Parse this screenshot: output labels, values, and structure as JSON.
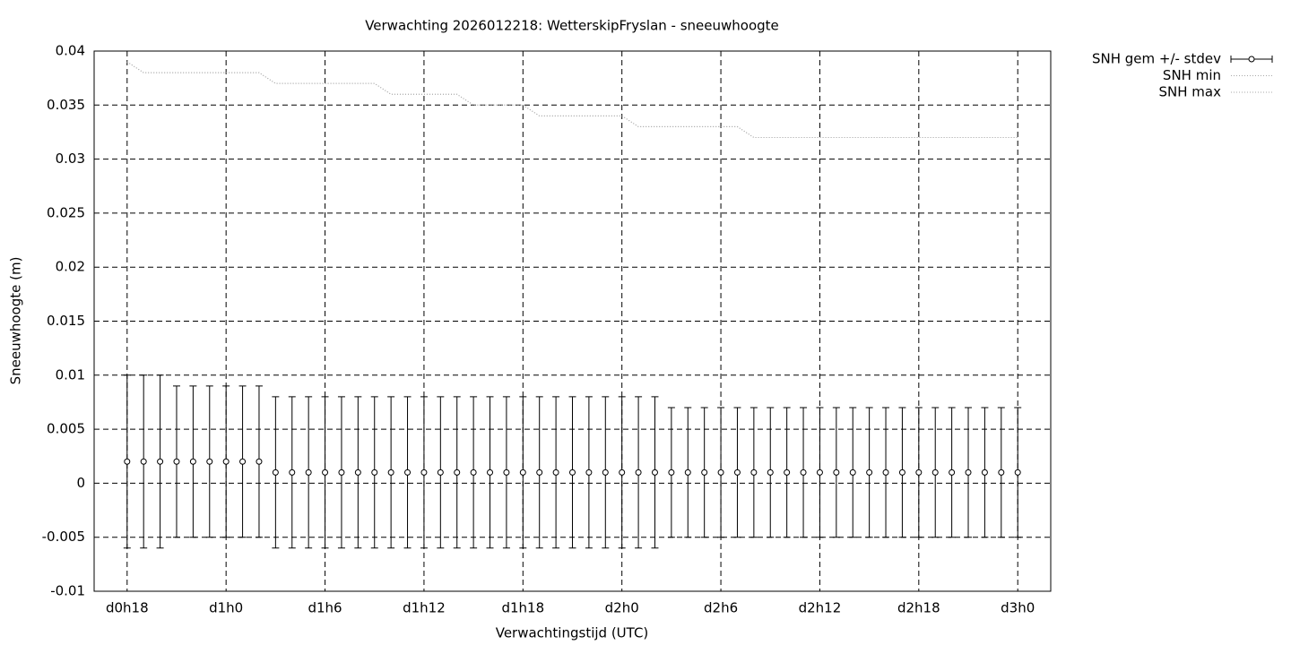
{
  "chart_data": {
    "type": "errorbar",
    "title": "Verwachting 2026012218: WetterskipFryslan - sneeuwhoogte",
    "xlabel": "Verwachtingstijd (UTC)",
    "ylabel": "Sneeuwhoogte (m)",
    "x": [
      18,
      19,
      20,
      21,
      22,
      23,
      24,
      25,
      26,
      27,
      28,
      29,
      30,
      31,
      32,
      33,
      34,
      35,
      36,
      37,
      38,
      39,
      40,
      41,
      42,
      43,
      44,
      45,
      46,
      47,
      48,
      49,
      50,
      51,
      52,
      53,
      54,
      55,
      56,
      57,
      58,
      59,
      60,
      61,
      62,
      63,
      64,
      65,
      66,
      67,
      68,
      69,
      70,
      71,
      72
    ],
    "xlim": [
      16,
      74
    ],
    "xticks": [
      {
        "value": 18,
        "label": "d0h18"
      },
      {
        "value": 24,
        "label": "d1h0"
      },
      {
        "value": 30,
        "label": "d1h6"
      },
      {
        "value": 36,
        "label": "d1h12"
      },
      {
        "value": 42,
        "label": "d1h18"
      },
      {
        "value": 48,
        "label": "d2h0"
      },
      {
        "value": 54,
        "label": "d2h6"
      },
      {
        "value": 60,
        "label": "d2h12"
      },
      {
        "value": 66,
        "label": "d2h18"
      },
      {
        "value": 72,
        "label": "d3h0"
      }
    ],
    "ylim": [
      -0.01,
      0.04
    ],
    "yticks": [
      -0.01,
      -0.005,
      0,
      0.005,
      0.01,
      0.015,
      0.02,
      0.025,
      0.03,
      0.035,
      0.04
    ],
    "grid": true,
    "legend": "right",
    "series": [
      {
        "name": "SNH gem +/- stdev",
        "color": "#000000",
        "style": "errorbar",
        "values": [
          0.002,
          0.002,
          0.002,
          0.002,
          0.002,
          0.002,
          0.002,
          0.002,
          0.002,
          0.001,
          0.001,
          0.001,
          0.001,
          0.001,
          0.001,
          0.001,
          0.001,
          0.001,
          0.001,
          0.001,
          0.001,
          0.001,
          0.001,
          0.001,
          0.001,
          0.001,
          0.001,
          0.001,
          0.001,
          0.001,
          0.001,
          0.001,
          0.001,
          0.001,
          0.001,
          0.001,
          0.001,
          0.001,
          0.001,
          0.001,
          0.001,
          0.001,
          0.001,
          0.001,
          0.001,
          0.001,
          0.001,
          0.001,
          0.001,
          0.001,
          0.001,
          0.001,
          0.001,
          0.001,
          0.001
        ],
        "errors": [
          0.008,
          0.008,
          0.008,
          0.007,
          0.007,
          0.007,
          0.007,
          0.007,
          0.007,
          0.007,
          0.007,
          0.007,
          0.007,
          0.007,
          0.007,
          0.007,
          0.007,
          0.007,
          0.007,
          0.007,
          0.007,
          0.007,
          0.007,
          0.007,
          0.007,
          0.007,
          0.007,
          0.007,
          0.007,
          0.007,
          0.007,
          0.007,
          0.007,
          0.006,
          0.006,
          0.006,
          0.006,
          0.006,
          0.006,
          0.006,
          0.006,
          0.006,
          0.006,
          0.006,
          0.006,
          0.006,
          0.006,
          0.006,
          0.006,
          0.006,
          0.006,
          0.006,
          0.006,
          0.006,
          0.006
        ]
      },
      {
        "name": "SNH min",
        "color": "#a8a8a8",
        "style": "dotted",
        "values": [
          0.039,
          0.038,
          0.038,
          0.038,
          0.038,
          0.038,
          0.038,
          0.038,
          0.038,
          0.037,
          0.037,
          0.037,
          0.037,
          0.037,
          0.037,
          0.037,
          0.036,
          0.036,
          0.036,
          0.036,
          0.036,
          0.035,
          0.035,
          0.035,
          0.035,
          0.034,
          0.034,
          0.034,
          0.034,
          0.034,
          0.034,
          0.033,
          0.033,
          0.033,
          0.033,
          0.033,
          0.033,
          0.033,
          0.032,
          0.032,
          0.032,
          0.032,
          0.032,
          0.032,
          0.032,
          0.032,
          0.032,
          0.032,
          0.032,
          0.032,
          0.032,
          0.032,
          0.032,
          0.032,
          0.032
        ]
      },
      {
        "name": "SNH max",
        "color": "#a8a8a8",
        "style": "dotted",
        "values": [
          0.039,
          0.038,
          0.038,
          0.038,
          0.038,
          0.038,
          0.038,
          0.038,
          0.038,
          0.037,
          0.037,
          0.037,
          0.037,
          0.037,
          0.037,
          0.037,
          0.036,
          0.036,
          0.036,
          0.036,
          0.036,
          0.035,
          0.035,
          0.035,
          0.035,
          0.034,
          0.034,
          0.034,
          0.034,
          0.034,
          0.034,
          0.033,
          0.033,
          0.033,
          0.033,
          0.033,
          0.033,
          0.033,
          0.032,
          0.032,
          0.032,
          0.032,
          0.032,
          0.032,
          0.032,
          0.032,
          0.032,
          0.032,
          0.032,
          0.032,
          0.032,
          0.032,
          0.032,
          0.032,
          0.032
        ]
      }
    ]
  }
}
